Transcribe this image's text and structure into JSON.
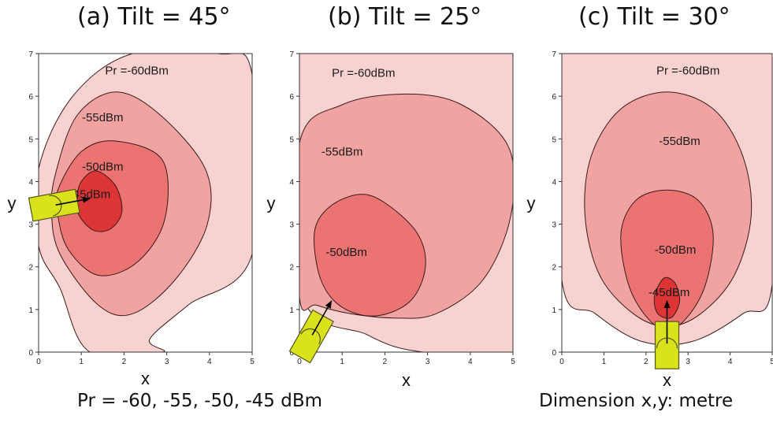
{
  "chart_data": [
    {
      "type": "contour",
      "title": "(a) Tilt = 45°",
      "xlabel": "x",
      "ylabel": "y",
      "xlim": [
        0,
        5
      ],
      "ylim": [
        0,
        7
      ],
      "x_ticks": [
        "0",
        "1",
        "2",
        "3",
        "4",
        "5"
      ],
      "y_ticks": [
        "0",
        "1",
        "2",
        "3",
        "4",
        "5",
        "6",
        "7"
      ],
      "transmitter": {
        "x": 0.4,
        "y": 3.45,
        "beam_to": {
          "x": 1.2,
          "y": 3.6
        }
      },
      "levels": [
        {
          "label": "Pr =-60dBm",
          "value": -60,
          "color": "#f8d2d0",
          "label_at": {
            "x": 2.3,
            "y": 6.6
          }
        },
        {
          "label": "-55dBm",
          "value": -55,
          "color": "#f1a3a2",
          "label_at": {
            "x": 1.5,
            "y": 5.5
          }
        },
        {
          "label": "-50dBm",
          "value": -50,
          "color": "#eb7372",
          "label_at": {
            "x": 1.5,
            "y": 4.35
          }
        },
        {
          "label": "-45dBm",
          "value": -45,
          "color": "#dd3535",
          "label_at": {
            "x": 1.2,
            "y": 3.7
          }
        }
      ],
      "boundaries": [
        {
          "level": -60,
          "points": [
            [
              0,
              4.3
            ],
            [
              0.8,
              6.0
            ],
            [
              2.2,
              7.0
            ],
            [
              4.2,
              7.0
            ],
            [
              5,
              6.5
            ],
            [
              5,
              2.3
            ],
            [
              3.5,
              1.1
            ],
            [
              2.6,
              0.3
            ],
            [
              2.9,
              0
            ],
            [
              1.2,
              0
            ],
            [
              0.5,
              1.5
            ],
            [
              0,
              2.5
            ]
          ]
        },
        {
          "level": -55,
          "points": [
            [
              0.4,
              4.2
            ],
            [
              0.9,
              5.55
            ],
            [
              1.8,
              6.1
            ],
            [
              2.8,
              5.6
            ],
            [
              3.9,
              4.3
            ],
            [
              3.95,
              3.0
            ],
            [
              3.2,
              1.7
            ],
            [
              2.2,
              0.9
            ],
            [
              1.4,
              1.1
            ],
            [
              0.5,
              2.3
            ],
            [
              0.3,
              3.3
            ]
          ]
        },
        {
          "level": -50,
          "points": [
            [
              0.45,
              3.8
            ],
            [
              1.0,
              4.7
            ],
            [
              1.8,
              4.95
            ],
            [
              2.9,
              4.5
            ],
            [
              2.95,
              3.1
            ],
            [
              2.3,
              2.1
            ],
            [
              1.4,
              1.8
            ],
            [
              0.7,
              2.4
            ],
            [
              0.45,
              3.2
            ]
          ]
        },
        {
          "level": -45,
          "points": [
            [
              0.9,
              3.6
            ],
            [
              1.0,
              4.0
            ],
            [
              1.35,
              4.25
            ],
            [
              1.8,
              3.9
            ],
            [
              1.95,
              3.3
            ],
            [
              1.7,
              2.9
            ],
            [
              1.3,
              2.85
            ],
            [
              0.95,
              3.2
            ]
          ]
        }
      ]
    },
    {
      "type": "contour",
      "title": "(b) Tilt = 25°",
      "xlabel": "x",
      "ylabel": "y",
      "xlim": [
        0,
        5
      ],
      "ylim": [
        0,
        7
      ],
      "x_ticks": [
        "0",
        "1",
        "2",
        "3",
        "4",
        "5"
      ],
      "y_ticks": [
        "0",
        "1",
        "2",
        "3",
        "4",
        "5",
        "6",
        "7"
      ],
      "transmitter": {
        "x": 0.3,
        "y": 0.4,
        "beam_to": {
          "x": 0.75,
          "y": 1.2
        }
      },
      "levels": [
        {
          "label": "Pr =-60dBm",
          "value": -60,
          "color": "#f8d2d0",
          "label_at": {
            "x": 1.5,
            "y": 6.55
          }
        },
        {
          "label": "-55dBm",
          "value": -55,
          "color": "#f1a3a2",
          "label_at": {
            "x": 1.0,
            "y": 4.7
          }
        },
        {
          "label": "-50dBm",
          "value": -50,
          "color": "#eb7372",
          "label_at": {
            "x": 1.1,
            "y": 2.35
          }
        }
      ],
      "boundaries": [
        {
          "level": -60,
          "points": [
            [
              0,
              7
            ],
            [
              5,
              7
            ],
            [
              5,
              0
            ],
            [
              2.9,
              0
            ],
            [
              1.6,
              0.4
            ],
            [
              0,
              1.5
            ]
          ]
        },
        {
          "level": -55,
          "points": [
            [
              0,
              4.9
            ],
            [
              1.0,
              5.8
            ],
            [
              2.5,
              6.05
            ],
            [
              3.8,
              5.8
            ],
            [
              4.9,
              4.8
            ],
            [
              4.95,
              3.2
            ],
            [
              4.3,
              1.7
            ],
            [
              3.2,
              0.9
            ],
            [
              2.2,
              0.8
            ],
            [
              1.2,
              0.9
            ],
            [
              0.4,
              1.1
            ],
            [
              0,
              1.3
            ]
          ]
        },
        {
          "level": -50,
          "points": [
            [
              0.35,
              2.8
            ],
            [
              0.7,
              3.4
            ],
            [
              1.4,
              3.7
            ],
            [
              2.0,
              3.5
            ],
            [
              2.75,
              2.8
            ],
            [
              2.95,
              2.0
            ],
            [
              2.6,
              1.2
            ],
            [
              1.8,
              0.85
            ],
            [
              1.0,
              1.05
            ],
            [
              0.5,
              1.7
            ]
          ]
        }
      ]
    },
    {
      "type": "contour",
      "title": "(c) Tilt = 30°",
      "xlabel": "x",
      "ylabel": "y",
      "xlim": [
        0,
        5
      ],
      "ylim": [
        0,
        7
      ],
      "x_ticks": [
        "0",
        "1",
        "2",
        "3",
        "4",
        "5"
      ],
      "y_ticks": [
        "0",
        "1",
        "2",
        "3",
        "4",
        "5",
        "6",
        "7"
      ],
      "transmitter": {
        "x": 2.5,
        "y": 0.2,
        "beam_to": {
          "x": 2.5,
          "y": 1.2
        }
      },
      "levels": [
        {
          "label": "Pr =-60dBm",
          "value": -60,
          "color": "#f8d2d0",
          "label_at": {
            "x": 3.0,
            "y": 6.6
          }
        },
        {
          "label": "-55dBm",
          "value": -55,
          "color": "#f1a3a2",
          "label_at": {
            "x": 2.8,
            "y": 4.95
          }
        },
        {
          "label": "-50dBm",
          "value": -50,
          "color": "#eb7372",
          "label_at": {
            "x": 2.7,
            "y": 2.4
          }
        },
        {
          "label": "-45dBm",
          "value": -45,
          "color": "#dd3535",
          "label_at": {
            "x": 2.55,
            "y": 1.4
          }
        }
      ],
      "boundaries": [
        {
          "level": -60,
          "points": [
            [
              0,
              7
            ],
            [
              5,
              7
            ],
            [
              5,
              1.6
            ],
            [
              4.3,
              0.9
            ],
            [
              3.1,
              0.25
            ],
            [
              1.9,
              0.25
            ],
            [
              0.8,
              0.9
            ],
            [
              0,
              1.7
            ]
          ]
        },
        {
          "level": -55,
          "points": [
            [
              0.7,
              4.6
            ],
            [
              1.4,
              5.7
            ],
            [
              2.5,
              6.1
            ],
            [
              3.6,
              5.7
            ],
            [
              4.3,
              4.6
            ],
            [
              4.5,
              3.2
            ],
            [
              4.1,
              1.8
            ],
            [
              3.3,
              0.9
            ],
            [
              2.5,
              0.6
            ],
            [
              1.7,
              0.9
            ],
            [
              0.9,
              1.8
            ],
            [
              0.55,
              3.2
            ]
          ]
        },
        {
          "level": -50,
          "points": [
            [
              1.4,
              2.7
            ],
            [
              1.75,
              3.55
            ],
            [
              2.5,
              3.8
            ],
            [
              3.25,
              3.55
            ],
            [
              3.6,
              2.7
            ],
            [
              3.3,
              1.3
            ],
            [
              2.5,
              0.5
            ],
            [
              1.7,
              1.3
            ]
          ]
        },
        {
          "level": -45,
          "points": [
            [
              2.2,
              1.3
            ],
            [
              2.35,
              1.65
            ],
            [
              2.5,
              1.75
            ],
            [
              2.7,
              1.6
            ],
            [
              2.8,
              1.2
            ],
            [
              2.65,
              0.85
            ],
            [
              2.45,
              0.8
            ],
            [
              2.25,
              0.95
            ]
          ]
        }
      ]
    }
  ],
  "footer": {
    "left": "Pr = -60, -55, -50, -45 dBm",
    "right": "Dimension x,y: metre"
  },
  "colors": {
    "tx_fill": "#d9e21a",
    "tx_stroke": "#55551b",
    "contour_stroke": "#3a1a1a"
  }
}
